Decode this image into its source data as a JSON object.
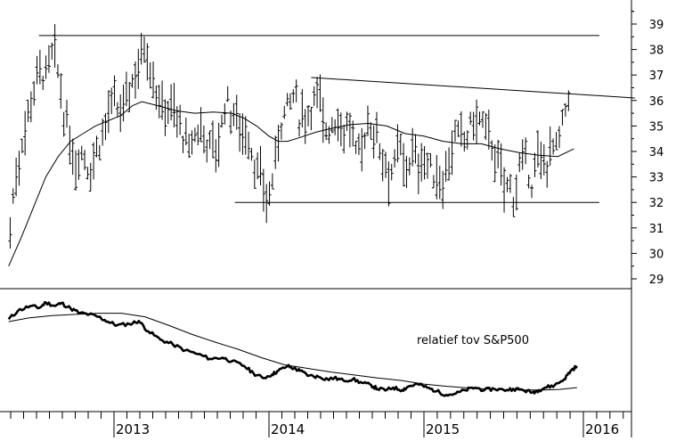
{
  "chart_data": [
    {
      "type": "ohlc",
      "panel": "price",
      "y_axis_side": "right",
      "ylim": [
        28.7,
        40.0
      ],
      "y_ticks": [
        29,
        30,
        31,
        32,
        33,
        34,
        35,
        36,
        37,
        38,
        39
      ],
      "x_ticks": [
        "2013",
        "2014",
        "2015",
        "2016"
      ],
      "x_tick_positions": [
        2013.0,
        2014.0,
        2015.0,
        2016.0
      ],
      "x_range": [
        2012.32,
        2016.2
      ],
      "bars_anchor": [
        [
          2012.33,
          31.0
        ],
        [
          2012.36,
          32.8
        ],
        [
          2012.4,
          34.2
        ],
        [
          2012.44,
          35.4
        ],
        [
          2012.48,
          36.5
        ],
        [
          2012.52,
          37.3
        ],
        [
          2012.56,
          36.9
        ],
        [
          2012.6,
          37.8
        ],
        [
          2012.64,
          37.1
        ],
        [
          2012.68,
          35.3
        ],
        [
          2012.72,
          34.2
        ],
        [
          2012.76,
          33.6
        ],
        [
          2012.8,
          34.1
        ],
        [
          2012.84,
          33.2
        ],
        [
          2012.88,
          34.0
        ],
        [
          2012.92,
          34.6
        ],
        [
          2012.96,
          35.4
        ],
        [
          2013.0,
          35.8
        ],
        [
          2013.04,
          35.4
        ],
        [
          2013.08,
          36.2
        ],
        [
          2013.12,
          36.8
        ],
        [
          2013.16,
          37.6
        ],
        [
          2013.2,
          38.3
        ],
        [
          2013.24,
          37.3
        ],
        [
          2013.28,
          36.2
        ],
        [
          2013.32,
          35.5
        ],
        [
          2013.36,
          35.9
        ],
        [
          2013.4,
          35.4
        ],
        [
          2013.44,
          34.8
        ],
        [
          2013.48,
          33.9
        ],
        [
          2013.52,
          34.6
        ],
        [
          2013.56,
          35.0
        ],
        [
          2013.6,
          34.4
        ],
        [
          2013.64,
          34.1
        ],
        [
          2013.68,
          34.4
        ],
        [
          2013.72,
          36.1
        ],
        [
          2013.76,
          35.5
        ],
        [
          2013.8,
          35.2
        ],
        [
          2013.84,
          34.9
        ],
        [
          2013.88,
          34.3
        ],
        [
          2013.92,
          33.2
        ],
        [
          2013.96,
          32.5
        ],
        [
          2014.0,
          32.1
        ],
        [
          2014.04,
          33.6
        ],
        [
          2014.08,
          35.3
        ],
        [
          2014.12,
          35.7
        ],
        [
          2014.16,
          36.2
        ],
        [
          2014.2,
          35.3
        ],
        [
          2014.24,
          35.4
        ],
        [
          2014.28,
          35.9
        ],
        [
          2014.32,
          36.2
        ],
        [
          2014.36,
          34.9
        ],
        [
          2014.4,
          35.1
        ],
        [
          2014.44,
          35.3
        ],
        [
          2014.48,
          34.9
        ],
        [
          2014.52,
          35.0
        ],
        [
          2014.56,
          33.8
        ],
        [
          2014.6,
          34.2
        ],
        [
          2014.64,
          35.2
        ],
        [
          2014.68,
          34.8
        ],
        [
          2014.72,
          34.2
        ],
        [
          2014.76,
          33.4
        ],
        [
          2014.8,
          33.2
        ],
        [
          2014.84,
          34.1
        ],
        [
          2014.88,
          33.3
        ],
        [
          2014.92,
          33.9
        ],
        [
          2014.96,
          33.5
        ],
        [
          2015.0,
          33.8
        ],
        [
          2015.04,
          33.2
        ],
        [
          2015.08,
          33.0
        ],
        [
          2015.12,
          32.9
        ],
        [
          2015.16,
          34.0
        ],
        [
          2015.2,
          34.5
        ],
        [
          2015.24,
          34.4
        ],
        [
          2015.28,
          34.7
        ],
        [
          2015.32,
          35.4
        ],
        [
          2015.36,
          35.1
        ],
        [
          2015.4,
          34.7
        ],
        [
          2015.44,
          34.1
        ],
        [
          2015.48,
          33.0
        ],
        [
          2015.52,
          32.7
        ],
        [
          2015.56,
          32.3
        ],
        [
          2015.6,
          33.3
        ],
        [
          2015.64,
          33.4
        ],
        [
          2015.68,
          32.8
        ],
        [
          2015.72,
          33.7
        ],
        [
          2015.76,
          33.4
        ],
        [
          2015.8,
          34.3
        ],
        [
          2015.84,
          34.0
        ],
        [
          2015.88,
          35.3
        ],
        [
          2015.92,
          36.8
        ]
      ],
      "moving_average": [
        [
          2012.32,
          29.5
        ],
        [
          2012.4,
          30.6
        ],
        [
          2012.48,
          31.8
        ],
        [
          2012.56,
          33.0
        ],
        [
          2012.64,
          33.8
        ],
        [
          2012.72,
          34.4
        ],
        [
          2012.8,
          34.7
        ],
        [
          2012.88,
          35.0
        ],
        [
          2012.96,
          35.2
        ],
        [
          2013.04,
          35.4
        ],
        [
          2013.12,
          35.8
        ],
        [
          2013.18,
          35.95
        ],
        [
          2013.28,
          35.8
        ],
        [
          2013.4,
          35.6
        ],
        [
          2013.52,
          35.5
        ],
        [
          2013.64,
          35.55
        ],
        [
          2013.76,
          35.5
        ],
        [
          2013.84,
          35.3
        ],
        [
          2013.92,
          35.0
        ],
        [
          2014.0,
          34.6
        ],
        [
          2014.06,
          34.4
        ],
        [
          2014.12,
          34.4
        ],
        [
          2014.2,
          34.55
        ],
        [
          2014.3,
          34.75
        ],
        [
          2014.4,
          34.9
        ],
        [
          2014.52,
          35.05
        ],
        [
          2014.64,
          35.1
        ],
        [
          2014.76,
          35.0
        ],
        [
          2014.88,
          34.7
        ],
        [
          2015.0,
          34.6
        ],
        [
          2015.12,
          34.4
        ],
        [
          2015.24,
          34.3
        ],
        [
          2015.36,
          34.3
        ],
        [
          2015.48,
          34.1
        ],
        [
          2015.6,
          33.95
        ],
        [
          2015.72,
          33.85
        ],
        [
          2015.84,
          33.8
        ],
        [
          2015.94,
          34.1
        ]
      ],
      "horizontal_lines": [
        38.55,
        32.0
      ],
      "horizontal_line_ranges": [
        [
          2012.32,
          2016.1
        ],
        [
          2013.78,
          2016.1
        ]
      ],
      "trendline": [
        [
          2014.1,
          36.9
        ],
        [
          2016.1,
          36.1
        ]
      ]
    },
    {
      "type": "line",
      "panel": "relative",
      "annotation": "relatief tov S&P500",
      "series": [
        {
          "style": "thick",
          "points": [
            [
              2012.32,
              0.28
            ],
            [
              2012.38,
              0.42
            ],
            [
              2012.46,
              0.5
            ],
            [
              2012.52,
              0.47
            ],
            [
              2012.56,
              0.56
            ],
            [
              2012.62,
              0.5
            ],
            [
              2012.66,
              0.55
            ],
            [
              2012.72,
              0.46
            ],
            [
              2012.78,
              0.38
            ],
            [
              2012.84,
              0.36
            ],
            [
              2012.9,
              0.32
            ],
            [
              2012.96,
              0.24
            ],
            [
              2013.02,
              0.18
            ],
            [
              2013.1,
              0.2
            ],
            [
              2013.16,
              0.25
            ],
            [
              2013.22,
              0.08
            ],
            [
              2013.3,
              -0.06
            ],
            [
              2013.38,
              -0.14
            ],
            [
              2013.46,
              -0.24
            ],
            [
              2013.54,
              -0.3
            ],
            [
              2013.62,
              -0.38
            ],
            [
              2013.7,
              -0.36
            ],
            [
              2013.76,
              -0.42
            ],
            [
              2013.84,
              -0.5
            ],
            [
              2013.9,
              -0.62
            ],
            [
              2013.96,
              -0.7
            ],
            [
              2014.02,
              -0.64
            ],
            [
              2014.06,
              -0.58
            ],
            [
              2014.12,
              -0.5
            ],
            [
              2014.16,
              -0.54
            ],
            [
              2014.2,
              -0.58
            ],
            [
              2014.26,
              -0.66
            ],
            [
              2014.32,
              -0.68
            ],
            [
              2014.38,
              -0.72
            ],
            [
              2014.42,
              -0.7
            ],
            [
              2014.48,
              -0.74
            ],
            [
              2014.54,
              -0.72
            ],
            [
              2014.6,
              -0.78
            ],
            [
              2014.66,
              -0.82
            ],
            [
              2014.7,
              -0.88
            ],
            [
              2014.76,
              -0.9
            ],
            [
              2014.8,
              -0.86
            ],
            [
              2014.86,
              -0.9
            ],
            [
              2014.9,
              -0.84
            ],
            [
              2014.96,
              -0.8
            ],
            [
              2015.02,
              -0.86
            ],
            [
              2015.08,
              -0.92
            ],
            [
              2015.14,
              -0.98
            ],
            [
              2015.2,
              -0.96
            ],
            [
              2015.26,
              -0.9
            ],
            [
              2015.32,
              -0.86
            ],
            [
              2015.38,
              -0.9
            ],
            [
              2015.44,
              -0.88
            ],
            [
              2015.5,
              -0.9
            ],
            [
              2015.56,
              -0.88
            ],
            [
              2015.62,
              -0.9
            ],
            [
              2015.68,
              -0.94
            ],
            [
              2015.72,
              -0.9
            ],
            [
              2015.76,
              -0.86
            ],
            [
              2015.82,
              -0.82
            ],
            [
              2015.88,
              -0.72
            ],
            [
              2015.92,
              -0.58
            ],
            [
              2015.96,
              -0.5
            ]
          ]
        },
        {
          "style": "thin",
          "points": [
            [
              2012.32,
              0.24
            ],
            [
              2012.45,
              0.3
            ],
            [
              2012.6,
              0.34
            ],
            [
              2012.75,
              0.36
            ],
            [
              2012.9,
              0.38
            ],
            [
              2013.05,
              0.38
            ],
            [
              2013.2,
              0.32
            ],
            [
              2013.35,
              0.18
            ],
            [
              2013.5,
              0.03
            ],
            [
              2013.65,
              -0.1
            ],
            [
              2013.8,
              -0.22
            ],
            [
              2013.95,
              -0.36
            ],
            [
              2014.1,
              -0.48
            ],
            [
              2014.25,
              -0.54
            ],
            [
              2014.4,
              -0.6
            ],
            [
              2014.55,
              -0.65
            ],
            [
              2014.7,
              -0.7
            ],
            [
              2014.85,
              -0.74
            ],
            [
              2015.0,
              -0.8
            ],
            [
              2015.15,
              -0.84
            ],
            [
              2015.3,
              -0.87
            ],
            [
              2015.45,
              -0.89
            ],
            [
              2015.6,
              -0.9
            ],
            [
              2015.75,
              -0.9
            ],
            [
              2015.85,
              -0.89
            ],
            [
              2015.96,
              -0.86
            ]
          ]
        }
      ],
      "ylim": [
        -1.2,
        0.7
      ]
    }
  ]
}
